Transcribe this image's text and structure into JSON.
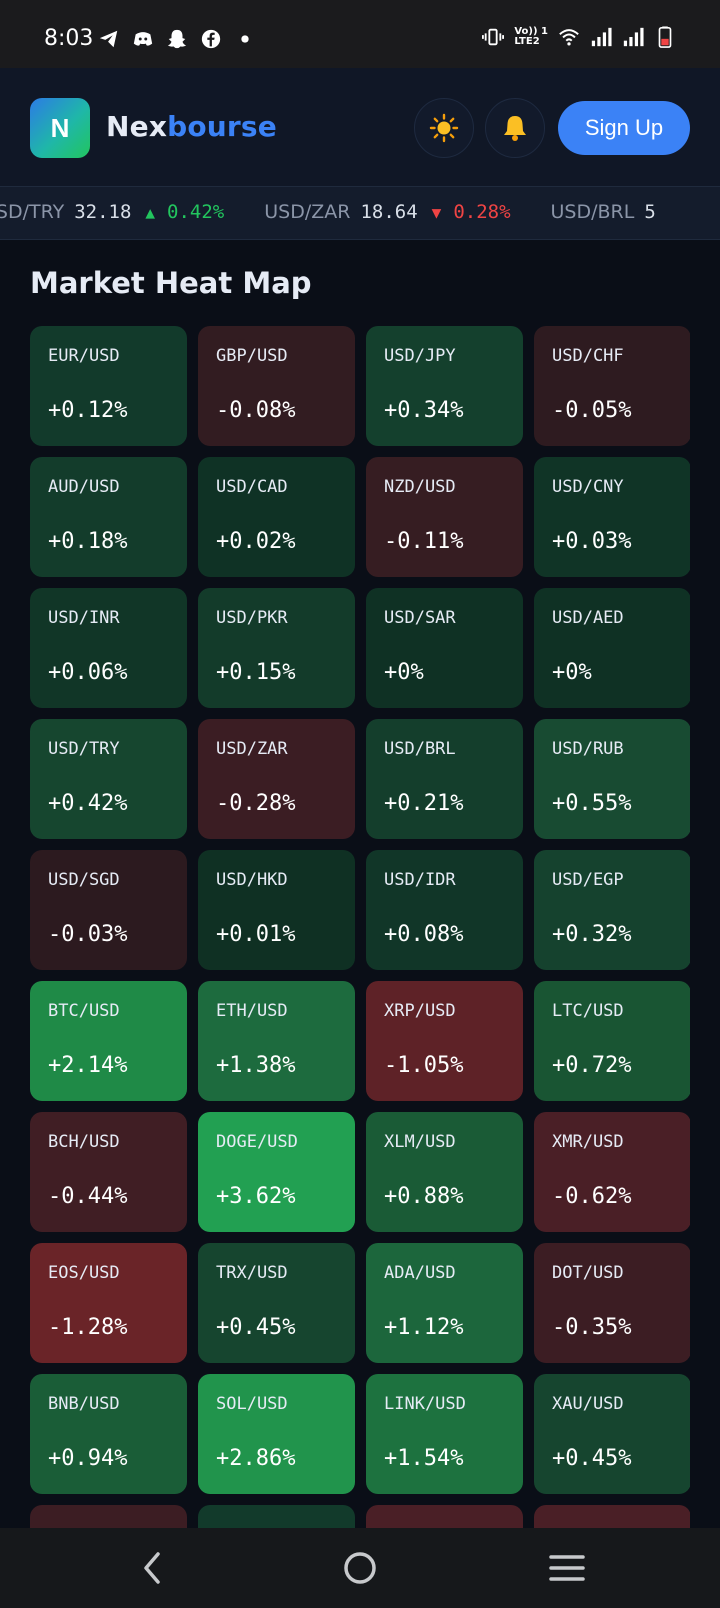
{
  "status": {
    "time": "8:03",
    "net_label_top": "Vo)) 1",
    "net_label_bottom": "LTE2"
  },
  "header": {
    "logo_letter": "N",
    "brand_part1": "Nex",
    "brand_part2": "bourse",
    "theme_icon": "sun-icon",
    "bell_icon": "bell-icon",
    "signup_label": "Sign Up"
  },
  "ticker": [
    {
      "pair": "USD/TRY",
      "price": "32.18",
      "dir": "up",
      "change": "0.42%"
    },
    {
      "pair": "USD/ZAR",
      "price": "18.64",
      "dir": "down",
      "change": "0.28%"
    },
    {
      "pair": "USD/BRL",
      "price": "5",
      "dir": "",
      "change": ""
    }
  ],
  "heatmap": {
    "title": "Market Heat Map",
    "tiles": [
      {
        "symbol": "EUR/USD",
        "change": "+0.12%",
        "color": "#123a2b"
      },
      {
        "symbol": "GBP/USD",
        "change": "-0.08%",
        "color": "#321c21"
      },
      {
        "symbol": "USD/JPY",
        "change": "+0.34%",
        "color": "#14402d"
      },
      {
        "symbol": "USD/CHF",
        "change": "-0.05%",
        "color": "#2e1b20"
      },
      {
        "symbol": "AUD/USD",
        "change": "+0.18%",
        "color": "#133c2b"
      },
      {
        "symbol": "USD/CAD",
        "change": "+0.02%",
        "color": "#0f3225"
      },
      {
        "symbol": "NZD/USD",
        "change": "-0.11%",
        "color": "#361d22"
      },
      {
        "symbol": "USD/CNY",
        "change": "+0.03%",
        "color": "#103426"
      },
      {
        "symbol": "USD/INR",
        "change": "+0.06%",
        "color": "#113627"
      },
      {
        "symbol": "USD/PKR",
        "change": "+0.15%",
        "color": "#133b2a"
      },
      {
        "symbol": "USD/SAR",
        "change": "+0%",
        "color": "#0f3124"
      },
      {
        "symbol": "USD/AED",
        "change": "+0%",
        "color": "#0f3124"
      },
      {
        "symbol": "USD/TRY",
        "change": "+0.42%",
        "color": "#16462f"
      },
      {
        "symbol": "USD/ZAR",
        "change": "-0.28%",
        "color": "#3b1d23"
      },
      {
        "symbol": "USD/BRL",
        "change": "+0.21%",
        "color": "#143e2c"
      },
      {
        "symbol": "USD/RUB",
        "change": "+0.55%",
        "color": "#184b32"
      },
      {
        "symbol": "USD/SGD",
        "change": "-0.03%",
        "color": "#2c1a1f"
      },
      {
        "symbol": "USD/HKD",
        "change": "+0.01%",
        "color": "#0f3023"
      },
      {
        "symbol": "USD/IDR",
        "change": "+0.08%",
        "color": "#113628"
      },
      {
        "symbol": "USD/EGP",
        "change": "+0.32%",
        "color": "#15422e"
      },
      {
        "symbol": "BTC/USD",
        "change": "+2.14%",
        "color": "#1f8a47"
      },
      {
        "symbol": "ETH/USD",
        "change": "+1.38%",
        "color": "#1d6b3e"
      },
      {
        "symbol": "XRP/USD",
        "change": "-1.05%",
        "color": "#5e2227"
      },
      {
        "symbol": "LTC/USD",
        "change": "+0.72%",
        "color": "#195533"
      },
      {
        "symbol": "BCH/USD",
        "change": "-0.44%",
        "color": "#401e24"
      },
      {
        "symbol": "DOGE/USD",
        "change": "+3.62%",
        "color": "#22a052"
      },
      {
        "symbol": "XLM/USD",
        "change": "+0.88%",
        "color": "#1a5b36"
      },
      {
        "symbol": "XMR/USD",
        "change": "-0.62%",
        "color": "#4a1f26"
      },
      {
        "symbol": "EOS/USD",
        "change": "-1.28%",
        "color": "#6a2428"
      },
      {
        "symbol": "TRX/USD",
        "change": "+0.45%",
        "color": "#16452f"
      },
      {
        "symbol": "ADA/USD",
        "change": "+1.12%",
        "color": "#1c663c"
      },
      {
        "symbol": "DOT/USD",
        "change": "-0.35%",
        "color": "#3c1d23"
      },
      {
        "symbol": "BNB/USD",
        "change": "+0.94%",
        "color": "#1a5d37"
      },
      {
        "symbol": "SOL/USD",
        "change": "+2.86%",
        "color": "#21944c"
      },
      {
        "symbol": "LINK/USD",
        "change": "+1.54%",
        "color": "#1d723f"
      },
      {
        "symbol": "XAU/USD",
        "change": "+0.45%",
        "color": "#16452f"
      },
      {
        "symbol": "",
        "change": "",
        "color": "#3c1d23"
      },
      {
        "symbol": "",
        "change": "",
        "color": "#123a2b"
      },
      {
        "symbol": "",
        "change": "",
        "color": "#4a1f26"
      },
      {
        "symbol": "",
        "change": "",
        "color": "#4a1f26"
      }
    ]
  },
  "nav": {
    "back_icon": "back-icon",
    "home_icon": "home-icon",
    "recents_icon": "recents-icon"
  }
}
